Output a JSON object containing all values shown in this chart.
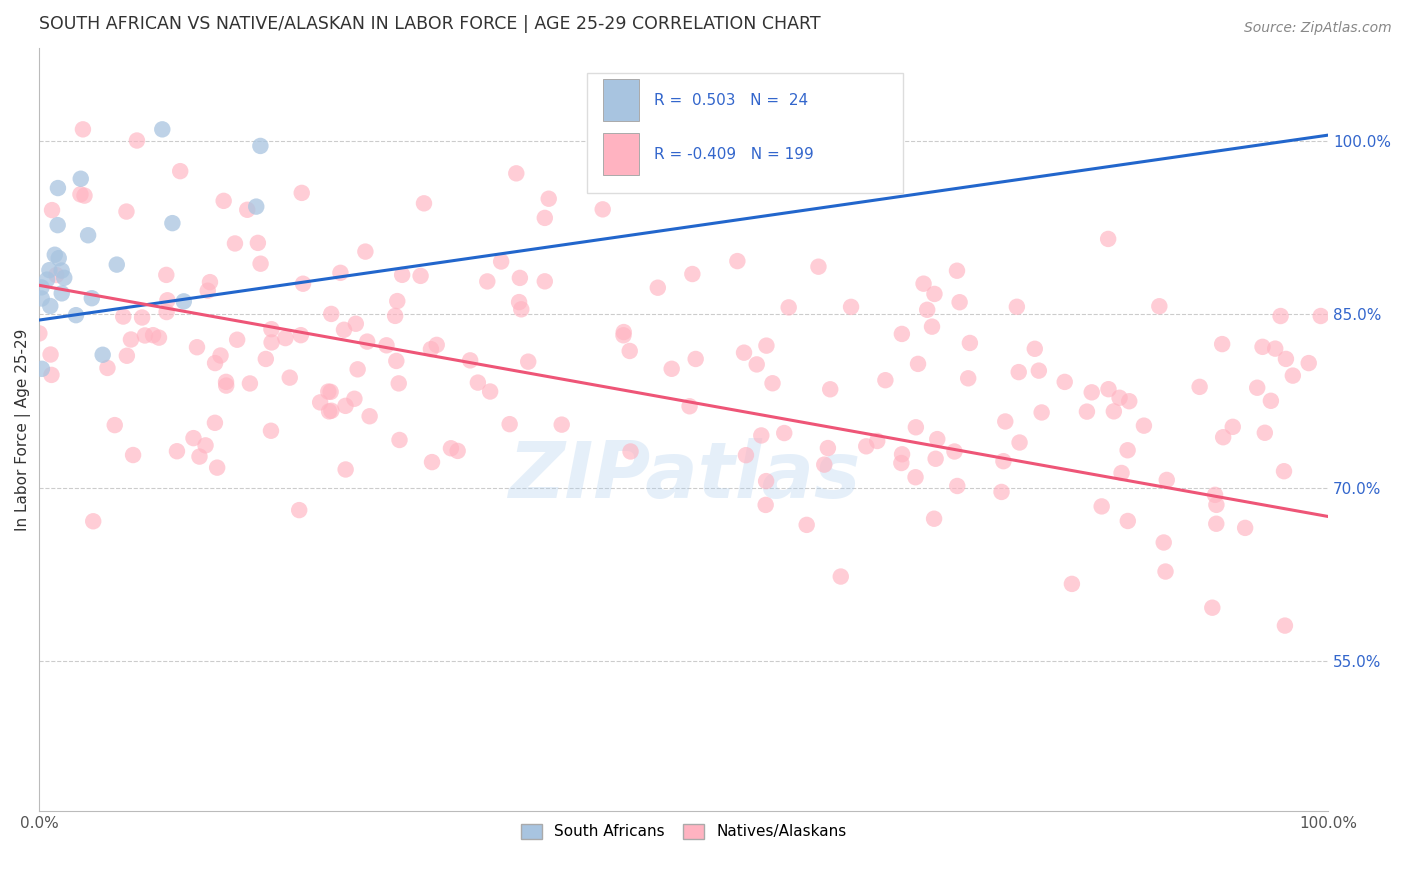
{
  "title": "SOUTH AFRICAN VS NATIVE/ALASKAN IN LABOR FORCE | AGE 25-29 CORRELATION CHART",
  "source": "Source: ZipAtlas.com",
  "ylabel": "In Labor Force | Age 25-29",
  "ytick_labels": [
    "100.0%",
    "85.0%",
    "70.0%",
    "55.0%"
  ],
  "ytick_values": [
    1.0,
    0.85,
    0.7,
    0.55
  ],
  "legend_label1": "South Africans",
  "legend_label2": "Natives/Alaskans",
  "R1": 0.503,
  "N1": 24,
  "R2": -0.409,
  "N2": 199,
  "color_blue": "#A8C4E0",
  "color_pink": "#FFB3C1",
  "color_blue_line": "#2266CC",
  "color_pink_line": "#EE5577",
  "watermark": "ZIPatlas",
  "background_color": "#FFFFFF",
  "grid_color": "#CCCCCC",
  "xlim": [
    0.0,
    1.0
  ],
  "ylim": [
    0.42,
    1.08
  ],
  "blue_line_x": [
    0.0,
    1.0
  ],
  "blue_line_y": [
    0.845,
    1.005
  ],
  "pink_line_x": [
    0.0,
    1.0
  ],
  "pink_line_y": [
    0.875,
    0.675
  ]
}
